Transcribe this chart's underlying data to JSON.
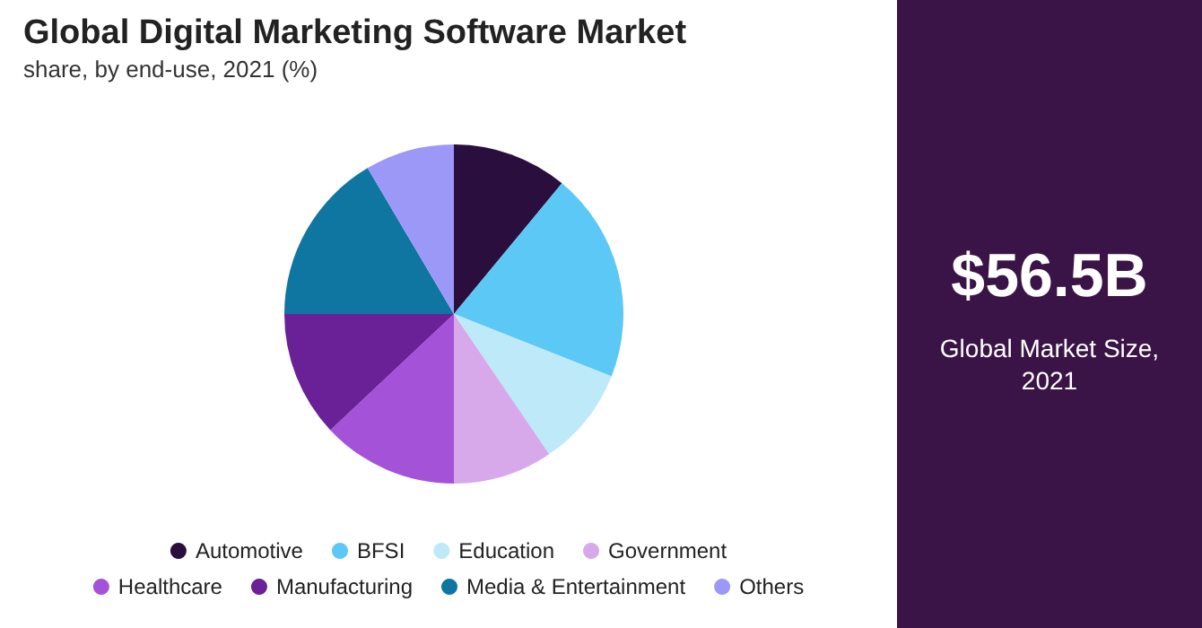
{
  "chart_data": {
    "type": "pie",
    "title": "Global Digital Marketing Software Market",
    "subtitle": "share, by end-use, 2021 (%)",
    "categories": [
      "Automotive",
      "BFSI",
      "Education",
      "Government",
      "Healthcare",
      "Manufacturing",
      "Media & Entertainment",
      "Others"
    ],
    "values": [
      11,
      20,
      9.5,
      9.5,
      13,
      12,
      16.5,
      8.5
    ],
    "colors": [
      "#2a0f3e",
      "#5bc8f5",
      "#bde9f9",
      "#d7a9ea",
      "#a452d8",
      "#6a2097",
      "#0e76a0",
      "#9c98f8"
    ],
    "legend": "bottom",
    "annotations": [
      "$56.5B",
      "Global Market Size, 2021"
    ]
  }
}
